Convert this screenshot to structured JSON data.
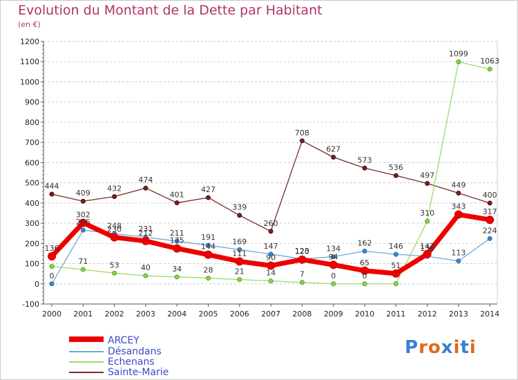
{
  "title": "Evolution du Montant de la Dette par Habitant",
  "unit": "(en €)",
  "logo_text": "Proxiti",
  "chart_data": {
    "type": "line",
    "title": "Evolution du Montant de la Dette par Habitant",
    "subtitle": "(en €)",
    "x": [
      "2000",
      "2001",
      "2002",
      "2003",
      "2004",
      "2005",
      "2006",
      "2007",
      "2008",
      "2009",
      "2010",
      "2011",
      "2012",
      "2013",
      "2014"
    ],
    "ylim": [
      -100,
      1200
    ],
    "yticks": [
      -100,
      0,
      100,
      200,
      300,
      400,
      500,
      600,
      700,
      800,
      900,
      1000,
      1100,
      1200
    ],
    "grid": "horizontal dashed",
    "legend": "bottom-left",
    "series": [
      {
        "name": "ARCEY",
        "color": "#ee0000",
        "values": [
          136,
          302,
          230,
          212,
          175,
          144,
          111,
          90,
          120,
          94,
          65,
          51,
          147,
          343,
          317
        ]
      },
      {
        "name": "Désandans",
        "color": "#6fa7d7",
        "values": [
          0,
          266,
          248,
          231,
          211,
          191,
          169,
          147,
          123,
          134,
          162,
          146,
          136,
          113,
          224
        ]
      },
      {
        "name": "Echenans",
        "color": "#99dd66",
        "values": [
          86,
          71,
          53,
          40,
          34,
          28,
          21,
          14,
          7,
          0,
          0,
          0,
          310,
          1099,
          1063
        ]
      },
      {
        "name": "Sainte-Marie",
        "color": "#7a2a2a",
        "values": [
          444,
          409,
          432,
          474,
          401,
          427,
          339,
          260,
          708,
          627,
          573,
          536,
          497,
          449,
          400
        ]
      }
    ],
    "labels": {
      "ARCEY": [
        "136",
        "302",
        "230",
        "212",
        "175",
        "144",
        "111",
        "90",
        "120",
        "94",
        "65",
        "51",
        "147",
        "343",
        "317"
      ],
      "Désandans": [
        "0",
        "266",
        "248",
        "231",
        "211",
        "191",
        "169",
        "147",
        "123",
        "134",
        "162",
        "146",
        "136",
        "113",
        "224"
      ],
      "Echenans": [
        "",
        "71",
        "53",
        "40",
        "34",
        "28",
        "21",
        "14",
        "7",
        "0",
        "0",
        "",
        "310",
        "1099",
        "1063"
      ],
      "Sainte-Marie": [
        "444",
        "409",
        "432",
        "474",
        "401",
        "427",
        "339",
        "260",
        "708",
        "627",
        "573",
        "536",
        "497",
        "449",
        "400"
      ]
    }
  }
}
